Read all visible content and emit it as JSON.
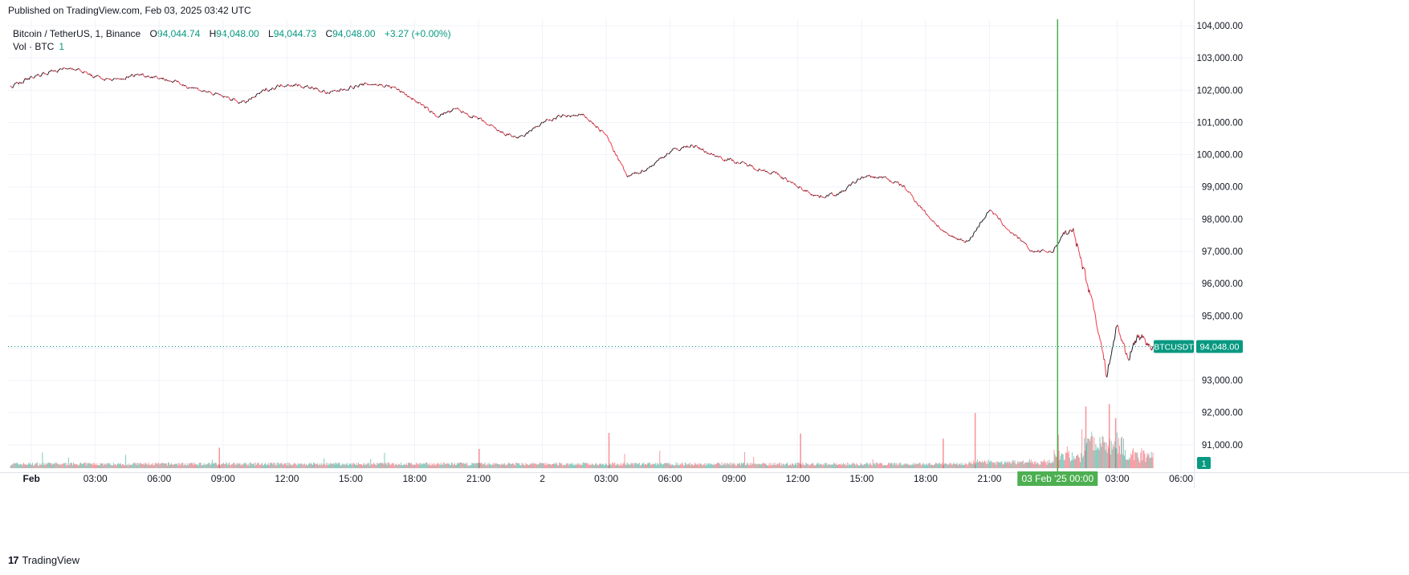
{
  "published": "Published on TradingView.com, Feb 03, 2025 03:42 UTC",
  "legend": {
    "symbol": "Bitcoin / TetherUS, 1, Binance",
    "open_label": "O",
    "open": "94,044.74",
    "high_label": "H",
    "high": "94,048.00",
    "low_label": "L",
    "low": "94,044.73",
    "close_label": "C",
    "close": "94,048.00",
    "change": "+3.27 (+0.00%)",
    "vol_label": "Vol · BTC",
    "vol_value": "1"
  },
  "footer": {
    "brand": "TradingView",
    "logo": "17"
  },
  "colors": {
    "up": "#089981",
    "down": "#f23645",
    "crosshair": "#4caf50",
    "grid": "#f0f3fa"
  },
  "chart_data": {
    "type": "line",
    "title": "Bitcoin / TetherUS, 1, Binance",
    "y_ticks": [
      "104,000.00",
      "103,000.00",
      "102,000.00",
      "101,000.00",
      "100,000.00",
      "99,000.00",
      "98,000.00",
      "97,000.00",
      "96,000.00",
      "95,000.00",
      "94,000.00",
      "93,000.00",
      "92,000.00",
      "91,000.00"
    ],
    "y_tick_values": [
      104000,
      103000,
      102000,
      101000,
      100000,
      99000,
      98000,
      97000,
      96000,
      95000,
      94000,
      93000,
      92000,
      91000
    ],
    "ylim": [
      90250,
      104200
    ],
    "x_ticks": [
      "Feb",
      "03:00",
      "06:00",
      "09:00",
      "12:00",
      "15:00",
      "18:00",
      "21:00",
      "2",
      "03:00",
      "06:00",
      "09:00",
      "12:00",
      "15:00",
      "18:00",
      "21:00",
      "03:00",
      "06:00"
    ],
    "x_tick_hours": [
      0,
      3,
      6,
      9,
      12,
      15,
      18,
      21,
      24,
      27,
      30,
      33,
      36,
      39,
      42,
      45,
      51,
      54
    ],
    "xlim_hours": [
      -1.1,
      54.6
    ],
    "series": [
      {
        "name": "BTCUSDT close",
        "x_hours": [
          -1.0,
          0,
          1,
          2,
          3,
          4,
          5,
          6,
          7,
          8,
          9,
          10,
          11,
          12,
          13,
          14,
          15,
          16,
          17,
          18,
          19,
          20,
          21,
          22,
          23,
          24,
          25,
          26,
          27,
          28,
          29,
          30,
          31,
          32,
          33,
          34,
          35,
          36,
          37,
          38,
          39,
          40,
          41,
          42,
          43,
          44,
          45,
          46,
          47,
          48,
          48.5,
          49,
          49.5,
          50,
          50.5,
          51,
          51.5,
          52,
          52.7
        ],
        "values": [
          102100,
          102400,
          102600,
          102700,
          102400,
          102300,
          102500,
          102400,
          102200,
          102000,
          101800,
          101600,
          102000,
          102200,
          102100,
          101900,
          102100,
          102200,
          102100,
          101700,
          101200,
          101400,
          101100,
          100700,
          100500,
          101000,
          101200,
          101200,
          100600,
          99300,
          99600,
          100100,
          100300,
          100000,
          99800,
          99600,
          99400,
          99000,
          98700,
          98800,
          99300,
          99300,
          99000,
          98200,
          97500,
          97300,
          98300,
          97600,
          97000,
          97000,
          97600,
          97500,
          96300,
          95000,
          93200,
          94700,
          93700,
          94400,
          94048
        ]
      }
    ],
    "volume": {
      "name": "Vol · BTC",
      "current": 1,
      "spikes": [
        {
          "hour": 8.8,
          "value": 0.32
        },
        {
          "hour": 21.0,
          "value": 0.3
        },
        {
          "hour": 27.1,
          "value": 0.55
        },
        {
          "hour": 36.1,
          "value": 0.54
        },
        {
          "hour": 42.8,
          "value": 0.46
        },
        {
          "hour": 44.3,
          "value": 0.86
        },
        {
          "hour": 48.2,
          "value": 0.52
        },
        {
          "hour": 49.5,
          "value": 0.96
        },
        {
          "hour": 50.6,
          "value": 1.0
        },
        {
          "hour": 50.9,
          "value": 0.78
        }
      ]
    },
    "current_price": 94048.0,
    "price_label": "94,048.00",
    "symbol_label": "BTCUSDT",
    "crosshair_time_label": "03 Feb '25   00:00",
    "crosshair_hour": 48.2,
    "volume_badge": "1"
  }
}
